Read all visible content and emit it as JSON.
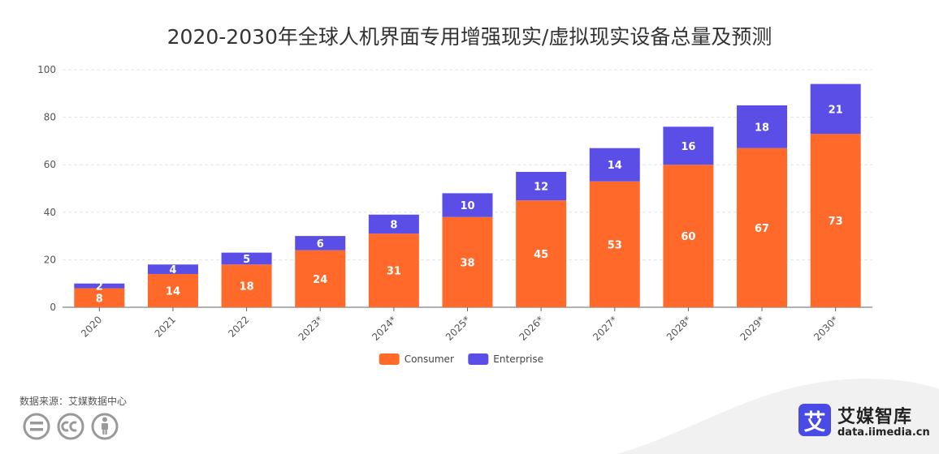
{
  "chart_data": {
    "type": "bar",
    "stacked": true,
    "title": "2020-2030年全球人机界面专用增强现实/虚拟现实设备总量及预测",
    "categories": [
      "2020",
      "2021",
      "2022",
      "2023*",
      "2024*",
      "2025*",
      "2026*",
      "2027*",
      "2028*",
      "2029*",
      "2030*"
    ],
    "series": [
      {
        "name": "Consumer",
        "color": "#ff6a2b",
        "values": [
          8,
          14,
          18,
          24,
          31,
          38,
          45,
          53,
          60,
          67,
          73
        ]
      },
      {
        "name": "Enterprise",
        "color": "#5b4ee6",
        "values": [
          2,
          4,
          5,
          6,
          8,
          10,
          12,
          14,
          16,
          18,
          21
        ]
      }
    ],
    "ylim": [
      0,
      100
    ],
    "yticks": [
      0,
      20,
      40,
      60,
      80,
      100
    ],
    "grid": true,
    "legend_position": "bottom-center",
    "data_labels": true
  },
  "footer": {
    "source": "数据来源：艾媒数据中心",
    "license_icons": [
      "equals-icon",
      "cc-icon",
      "person-icon"
    ]
  },
  "brand": {
    "logo_char": "艾",
    "name": "艾媒智库",
    "url": "data.iimedia.cn",
    "color": "#4a4ae6"
  }
}
